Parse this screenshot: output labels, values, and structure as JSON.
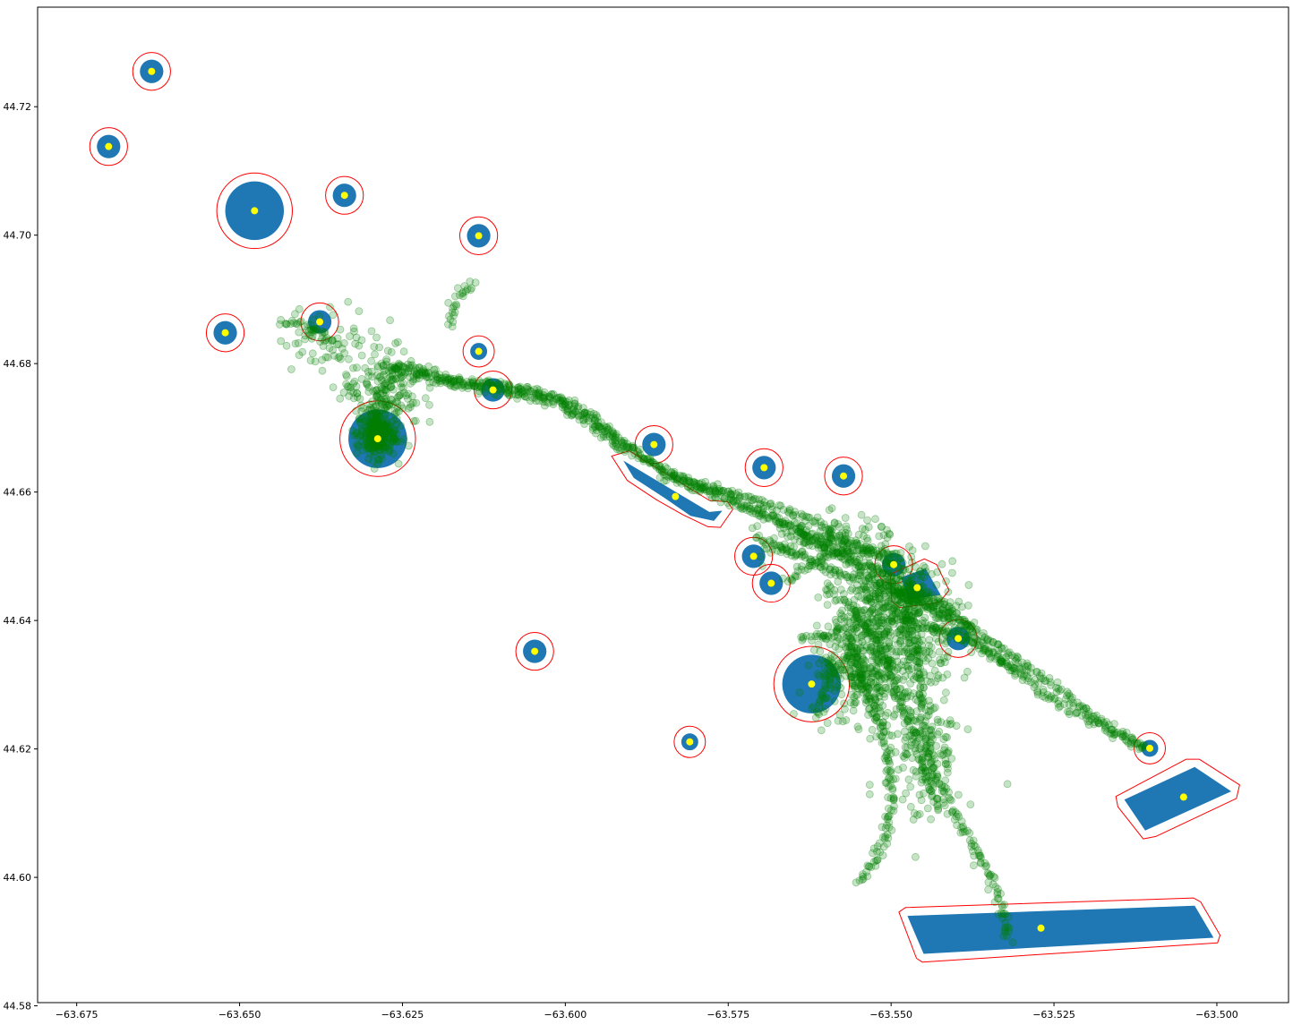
{
  "chart_data": {
    "type": "scatter",
    "title": "",
    "xlabel": "",
    "ylabel": "",
    "xlim": [
      -63.681,
      -63.489
    ],
    "ylim": [
      44.5805,
      44.7355
    ],
    "grid": false,
    "x_ticks": [
      -63.675,
      -63.65,
      -63.625,
      -63.6,
      -63.575,
      -63.55,
      -63.525,
      -63.5
    ],
    "x_tick_labels": [
      "−63.675",
      "−63.650",
      "−63.625",
      "−63.600",
      "−63.575",
      "−63.550",
      "−63.525",
      "−63.500"
    ],
    "y_ticks": [
      44.58,
      44.6,
      44.62,
      44.64,
      44.66,
      44.68,
      44.7,
      44.72
    ],
    "y_tick_labels": [
      "44.58",
      "44.60",
      "44.62",
      "44.64",
      "44.66",
      "44.68",
      "44.70",
      "44.72"
    ],
    "colors": {
      "zone_fill": "#1f77b4",
      "buffer_outline": "#ff0000",
      "centroid": "#ffff00",
      "track_points": "#008000"
    },
    "circle_zones": [
      {
        "x": -63.6635,
        "y": 44.7255,
        "r": 0.0018,
        "buffer": 0.0029
      },
      {
        "x": -63.6701,
        "y": 44.7138,
        "r": 0.0018,
        "buffer": 0.0029
      },
      {
        "x": -63.6477,
        "y": 44.7038,
        "r": 0.0045,
        "buffer": 0.0058
      },
      {
        "x": -63.6339,
        "y": 44.7062,
        "r": 0.0018,
        "buffer": 0.0029
      },
      {
        "x": -63.6133,
        "y": 44.6999,
        "r": 0.0018,
        "buffer": 0.0029
      },
      {
        "x": -63.6522,
        "y": 44.6848,
        "r": 0.0018,
        "buffer": 0.0029
      },
      {
        "x": -63.6377,
        "y": 44.6865,
        "r": 0.0018,
        "buffer": 0.0029
      },
      {
        "x": -63.6133,
        "y": 44.6819,
        "r": 0.0013,
        "buffer": 0.0024
      },
      {
        "x": -63.6111,
        "y": 44.6759,
        "r": 0.0018,
        "buffer": 0.0029
      },
      {
        "x": -63.6288,
        "y": 44.6683,
        "r": 0.0045,
        "buffer": 0.0058
      },
      {
        "x": -63.5864,
        "y": 44.6674,
        "r": 0.0018,
        "buffer": 0.0029
      },
      {
        "x": -63.5695,
        "y": 44.6638,
        "r": 0.0018,
        "buffer": 0.0029
      },
      {
        "x": -63.5573,
        "y": 44.6625,
        "r": 0.0018,
        "buffer": 0.0029
      },
      {
        "x": -63.5711,
        "y": 44.65,
        "r": 0.0018,
        "buffer": 0.0029
      },
      {
        "x": -63.5684,
        "y": 44.6458,
        "r": 0.0018,
        "buffer": 0.0029
      },
      {
        "x": -63.5496,
        "y": 44.6487,
        "r": 0.0018,
        "buffer": 0.0029
      },
      {
        "x": -63.5397,
        "y": 44.6372,
        "r": 0.0018,
        "buffer": 0.0029
      },
      {
        "x": -63.6047,
        "y": 44.6352,
        "r": 0.0018,
        "buffer": 0.0029
      },
      {
        "x": -63.5622,
        "y": 44.6301,
        "r": 0.0045,
        "buffer": 0.0058
      },
      {
        "x": -63.5809,
        "y": 44.6211,
        "r": 0.0013,
        "buffer": 0.0024
      },
      {
        "x": -63.5103,
        "y": 44.6201,
        "r": 0.0013,
        "buffer": 0.0024
      }
    ],
    "polygon_zones": [
      {
        "centroid": [
          -63.5831,
          44.6593
        ],
        "points": [
          [
            -63.5911,
            44.6649
          ],
          [
            -63.5779,
            44.6569
          ],
          [
            -63.5759,
            44.6571
          ],
          [
            -63.5772,
            44.6555
          ],
          [
            -63.5808,
            44.6563
          ],
          [
            -63.5848,
            44.6591
          ],
          [
            -63.5895,
            44.6622
          ]
        ],
        "buffer_points": [
          [
            -63.5929,
            44.6656
          ],
          [
            -63.5902,
            44.6664
          ],
          [
            -63.5779,
            44.6587
          ],
          [
            -63.5751,
            44.6585
          ],
          [
            -63.5743,
            44.6573
          ],
          [
            -63.5762,
            44.6545
          ],
          [
            -63.5781,
            44.6546
          ],
          [
            -63.582,
            44.6565
          ],
          [
            -63.586,
            44.6588
          ],
          [
            -63.5905,
            44.6618
          ]
        ]
      },
      {
        "centroid": [
          -63.546,
          44.6451
        ],
        "points": [
          [
            -63.5485,
            44.6467
          ],
          [
            -63.5447,
            44.6481
          ],
          [
            -63.5424,
            44.644
          ],
          [
            -63.5473,
            44.6432
          ]
        ],
        "buffer_points": [
          [
            -63.5501,
            44.6472
          ],
          [
            -63.5449,
            44.6496
          ],
          [
            -63.543,
            44.6487
          ],
          [
            -63.5411,
            44.6447
          ],
          [
            -63.5426,
            44.6428
          ],
          [
            -63.5487,
            44.642
          ],
          [
            -63.5499,
            44.643
          ]
        ]
      },
      {
        "centroid": [
          -63.5051,
          44.6125
        ],
        "points": [
          [
            -63.5142,
            44.6121
          ],
          [
            -63.5034,
            44.6172
          ],
          [
            -63.4978,
            44.6134
          ],
          [
            -63.511,
            44.6073
          ]
        ],
        "buffer_points": [
          [
            -63.5155,
            44.6126
          ],
          [
            -63.5152,
            44.611
          ],
          [
            -63.5113,
            44.606
          ],
          [
            -63.5093,
            44.6064
          ],
          [
            -63.497,
            44.6123
          ],
          [
            -63.4965,
            44.6144
          ],
          [
            -63.5027,
            44.6184
          ],
          [
            -63.5047,
            44.6184
          ]
        ]
      },
      {
        "centroid": [
          -63.527,
          44.5921
        ],
        "points": [
          [
            -63.5475,
            44.594
          ],
          [
            -63.5034,
            44.5956
          ],
          [
            -63.5005,
            44.5906
          ],
          [
            -63.545,
            44.5881
          ]
        ],
        "buffer_points": [
          [
            -63.5488,
            44.5946
          ],
          [
            -63.5478,
            44.5953
          ],
          [
            -63.5036,
            44.5968
          ],
          [
            -63.5025,
            44.5962
          ],
          [
            -63.4995,
            44.591
          ],
          [
            -63.4999,
            44.5898
          ],
          [
            -63.5452,
            44.5868
          ],
          [
            -63.5461,
            44.5874
          ]
        ]
      }
    ],
    "track_paths": [
      [
        [
          -63.6263,
          44.68
        ],
        [
          -63.6215,
          44.6788
        ],
        [
          -63.615,
          44.677
        ],
        [
          -63.6075,
          44.6762
        ],
        [
          -63.6005,
          44.6745
        ],
        [
          -63.595,
          44.6712
        ],
        [
          -63.59,
          44.6665
        ],
        [
          -63.5845,
          44.663
        ],
        [
          -63.579,
          44.6608
        ],
        [
          -63.574,
          44.6588
        ],
        [
          -63.569,
          44.6565
        ],
        [
          -63.564,
          44.654
        ],
        [
          -63.5595,
          44.6515
        ],
        [
          -63.555,
          44.6495
        ],
        [
          -63.551,
          44.6475
        ],
        [
          -63.547,
          44.6455
        ],
        [
          -63.543,
          44.643
        ],
        [
          -63.5395,
          44.6405
        ],
        [
          -63.535,
          44.637
        ],
        [
          -63.53,
          44.6335
        ],
        [
          -63.525,
          44.63
        ],
        [
          -63.52,
          44.626
        ],
        [
          -63.515,
          44.6225
        ],
        [
          -63.511,
          44.6205
        ]
      ],
      [
        [
          -63.624,
          44.679
        ],
        [
          -63.618,
          44.6775
        ],
        [
          -63.61,
          44.6765
        ],
        [
          -63.603,
          44.6752
        ],
        [
          -63.597,
          44.6722
        ],
        [
          -63.592,
          44.668
        ],
        [
          -63.586,
          44.664
        ],
        [
          -63.58,
          44.6615
        ],
        [
          -63.574,
          44.6598
        ],
        [
          -63.568,
          44.6578
        ],
        [
          -63.562,
          44.6555
        ],
        [
          -63.557,
          44.6528
        ],
        [
          -63.553,
          44.6505
        ],
        [
          -63.549,
          44.6482
        ]
      ],
      [
        [
          -63.628,
          44.6795
        ],
        [
          -63.623,
          44.678
        ],
        [
          -63.616,
          44.6765
        ],
        [
          -63.609,
          44.6755
        ],
        [
          -63.602,
          44.674
        ],
        [
          -63.596,
          44.6705
        ],
        [
          -63.591,
          44.666
        ]
      ],
      [
        [
          -63.585,
          44.6625
        ],
        [
          -63.578,
          44.66
        ],
        [
          -63.572,
          44.6575
        ],
        [
          -63.566,
          44.6548
        ],
        [
          -63.561,
          44.652
        ],
        [
          -63.556,
          44.649
        ],
        [
          -63.552,
          44.6462
        ],
        [
          -63.5485,
          44.6445
        ],
        [
          -63.544,
          44.642
        ],
        [
          -63.54,
          44.6395
        ],
        [
          -63.536,
          44.6358
        ],
        [
          -63.532,
          44.633
        ],
        [
          -63.5275,
          44.6295
        ],
        [
          -63.523,
          44.6265
        ],
        [
          -63.5185,
          44.6238
        ],
        [
          -63.514,
          44.6215
        ],
        [
          -63.5108,
          44.62
        ]
      ],
      [
        [
          -63.56,
          44.645
        ],
        [
          -63.556,
          44.642
        ],
        [
          -63.553,
          44.638
        ],
        [
          -63.551,
          44.634
        ],
        [
          -63.549,
          44.629
        ],
        [
          -63.547,
          44.624
        ],
        [
          -63.5455,
          44.619
        ],
        [
          -63.544,
          44.614
        ],
        [
          -63.5425,
          44.61
        ]
      ],
      [
        [
          -63.548,
          44.646
        ],
        [
          -63.547,
          44.641
        ],
        [
          -63.546,
          44.635
        ],
        [
          -63.5455,
          44.629
        ],
        [
          -63.545,
          44.623
        ],
        [
          -63.5435,
          44.617
        ],
        [
          -63.541,
          44.611
        ],
        [
          -63.5375,
          44.605
        ],
        [
          -63.5345,
          44.6
        ],
        [
          -63.533,
          44.595
        ],
        [
          -63.532,
          44.59
        ]
      ],
      [
        [
          -63.556,
          44.636
        ],
        [
          -63.554,
          44.63
        ],
        [
          -63.552,
          44.624
        ],
        [
          -63.5505,
          44.618
        ],
        [
          -63.55,
          44.612
        ],
        [
          -63.551,
          44.606
        ],
        [
          -63.553,
          44.602
        ],
        [
          -63.555,
          44.599
        ]
      ],
      [
        [
          -63.564,
          44.637
        ],
        [
          -63.559,
          44.638
        ],
        [
          -63.554,
          44.6395
        ],
        [
          -63.549,
          44.64
        ],
        [
          -63.544,
          44.639
        ],
        [
          -63.539,
          44.637
        ],
        [
          -63.534,
          44.6345
        ],
        [
          -63.529,
          44.6318
        ]
      ],
      [
        [
          -63.571,
          44.653
        ],
        [
          -63.565,
          44.6505
        ],
        [
          -63.56,
          44.648
        ],
        [
          -63.555,
          44.6465
        ],
        [
          -63.55,
          44.645
        ],
        [
          -63.545,
          44.643
        ],
        [
          -63.541,
          44.6408
        ],
        [
          -63.537,
          44.6385
        ]
      ],
      [
        [
          -63.566,
          44.646
        ],
        [
          -63.562,
          44.649
        ],
        [
          -63.558,
          44.6505
        ],
        [
          -63.553,
          44.651
        ],
        [
          -63.548,
          44.6495
        ]
      ],
      [
        [
          -63.63,
          44.666
        ],
        [
          -63.6295,
          44.67
        ],
        [
          -63.6285,
          44.674
        ],
        [
          -63.6275,
          44.677
        ],
        [
          -63.626,
          44.6795
        ]
      ],
      [
        [
          -63.635,
          44.683
        ],
        [
          -63.638,
          44.685
        ],
        [
          -63.641,
          44.686
        ],
        [
          -63.644,
          44.6865
        ]
      ],
      [
        [
          -63.618,
          44.686
        ],
        [
          -63.617,
          44.689
        ],
        [
          -63.616,
          44.691
        ],
        [
          -63.615,
          44.692
        ],
        [
          -63.614,
          44.6925
        ]
      ],
      [
        [
          -63.559,
          44.634
        ],
        [
          -63.56,
          44.629
        ],
        [
          -63.5615,
          44.625
        ]
      ]
    ],
    "track_clusters": [
      {
        "x": -63.629,
        "y": 44.669,
        "sx": 0.0015,
        "sy": 0.0018,
        "n": 240
      },
      {
        "x": -63.628,
        "y": 44.676,
        "sx": 0.003,
        "sy": 0.003,
        "n": 160
      },
      {
        "x": -63.636,
        "y": 44.684,
        "sx": 0.004,
        "sy": 0.0025,
        "n": 60
      },
      {
        "x": -63.548,
        "y": 44.638,
        "sx": 0.004,
        "sy": 0.005,
        "n": 320
      },
      {
        "x": -63.554,
        "y": 44.63,
        "sx": 0.004,
        "sy": 0.004,
        "n": 200
      },
      {
        "x": -63.55,
        "y": 44.644,
        "sx": 0.004,
        "sy": 0.0025,
        "n": 220
      },
      {
        "x": -63.545,
        "y": 44.62,
        "sx": 0.003,
        "sy": 0.006,
        "n": 160
      },
      {
        "x": -63.56,
        "y": 44.652,
        "sx": 0.005,
        "sy": 0.002,
        "n": 160
      },
      {
        "x": -63.555,
        "y": 44.635,
        "sx": 0.003,
        "sy": 0.003,
        "n": 140
      }
    ]
  }
}
